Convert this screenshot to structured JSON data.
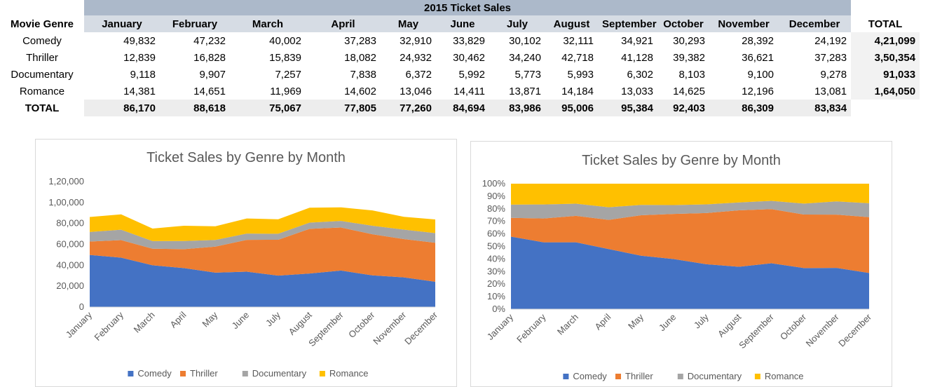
{
  "table": {
    "title": "2015 Ticket Sales",
    "genre_header": "Movie Genre",
    "total_header": "TOTAL",
    "months": [
      "January",
      "February",
      "March",
      "April",
      "May",
      "June",
      "July",
      "August",
      "September",
      "October",
      "November",
      "December"
    ],
    "rows": [
      {
        "genre": "Comedy",
        "values": [
          "49,832",
          "47,232",
          "40,002",
          "37,283",
          "32,910",
          "33,829",
          "30,102",
          "32,111",
          "34,921",
          "30,293",
          "28,392",
          "24,192"
        ],
        "total": "4,21,099"
      },
      {
        "genre": "Thriller",
        "values": [
          "12,839",
          "16,828",
          "15,839",
          "18,082",
          "24,932",
          "30,462",
          "34,240",
          "42,718",
          "41,128",
          "39,382",
          "36,621",
          "37,283"
        ],
        "total": "3,50,354"
      },
      {
        "genre": "Documentary",
        "values": [
          "9,118",
          "9,907",
          "7,257",
          "7,838",
          "6,372",
          "5,992",
          "5,773",
          "5,993",
          "6,302",
          "8,103",
          "9,100",
          "9,278"
        ],
        "total": "91,033"
      },
      {
        "genre": "Romance",
        "values": [
          "14,381",
          "14,651",
          "11,969",
          "14,602",
          "13,046",
          "14,411",
          "13,871",
          "14,184",
          "13,033",
          "14,625",
          "12,196",
          "13,081"
        ],
        "total": "1,64,050"
      }
    ],
    "total_row": {
      "label": "TOTAL",
      "values": [
        "86,170",
        "88,618",
        "75,067",
        "77,805",
        "77,260",
        "84,694",
        "83,986",
        "95,006",
        "95,384",
        "92,403",
        "86,309",
        "83,834"
      ]
    }
  },
  "colors": {
    "Comedy": "#4472c4",
    "Thriller": "#ed7d31",
    "Documentary": "#a5a5a5",
    "Romance": "#ffc000"
  },
  "chart_data": [
    {
      "type": "area",
      "stacking": "stacked",
      "title": "Ticket Sales by Genre by Month",
      "categories": [
        "January",
        "February",
        "March",
        "April",
        "May",
        "June",
        "July",
        "August",
        "September",
        "October",
        "November",
        "December"
      ],
      "series": [
        {
          "name": "Comedy",
          "values": [
            49832,
            47232,
            40002,
            37283,
            32910,
            33829,
            30102,
            32111,
            34921,
            30293,
            28392,
            24192
          ]
        },
        {
          "name": "Thriller",
          "values": [
            12839,
            16828,
            15839,
            18082,
            24932,
            30462,
            34240,
            42718,
            41128,
            39382,
            36621,
            37283
          ]
        },
        {
          "name": "Documentary",
          "values": [
            9118,
            9907,
            7257,
            7838,
            6372,
            5992,
            5773,
            5993,
            6302,
            8103,
            9100,
            9278
          ]
        },
        {
          "name": "Romance",
          "values": [
            14381,
            14651,
            11969,
            14602,
            13046,
            14411,
            13871,
            14184,
            13033,
            14625,
            12196,
            13081
          ]
        }
      ],
      "ylim": [
        0,
        120000
      ],
      "yticks": [
        "0",
        "20,000",
        "40,000",
        "60,000",
        "80,000",
        "1,00,000",
        "1,20,000"
      ],
      "legend": "bottom"
    },
    {
      "type": "area",
      "stacking": "percent",
      "title": "Ticket Sales by Genre by Month",
      "categories": [
        "January",
        "February",
        "March",
        "April",
        "May",
        "June",
        "July",
        "August",
        "September",
        "October",
        "November",
        "December"
      ],
      "series": [
        {
          "name": "Comedy",
          "values": [
            49832,
            47232,
            40002,
            37283,
            32910,
            33829,
            30102,
            32111,
            34921,
            30293,
            28392,
            24192
          ]
        },
        {
          "name": "Thriller",
          "values": [
            12839,
            16828,
            15839,
            18082,
            24932,
            30462,
            34240,
            42718,
            41128,
            39382,
            36621,
            37283
          ]
        },
        {
          "name": "Documentary",
          "values": [
            9118,
            9907,
            7257,
            7838,
            6372,
            5992,
            5773,
            5993,
            6302,
            8103,
            9100,
            9278
          ]
        },
        {
          "name": "Romance",
          "values": [
            14381,
            14651,
            11969,
            14602,
            13046,
            14411,
            13871,
            14184,
            13033,
            14625,
            12196,
            13081
          ]
        }
      ],
      "ylim": [
        0,
        100
      ],
      "yticks": [
        "0%",
        "10%",
        "20%",
        "30%",
        "40%",
        "50%",
        "60%",
        "70%",
        "80%",
        "90%",
        "100%"
      ],
      "legend": "bottom"
    }
  ]
}
